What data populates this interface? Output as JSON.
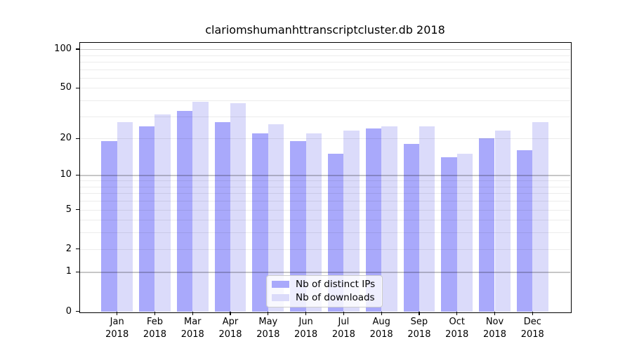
{
  "chart_data": {
    "type": "bar",
    "title": "clariomshumanhttranscriptcluster.db 2018",
    "categories": [
      "Jan",
      "Feb",
      "Mar",
      "Apr",
      "May",
      "Jun",
      "Jul",
      "Aug",
      "Sep",
      "Oct",
      "Nov",
      "Dec"
    ],
    "year_label": "2018",
    "series": [
      {
        "name": "Nb of distinct IPs",
        "color": "#a9a9fb",
        "values": [
          19,
          25,
          33,
          27,
          22,
          19,
          15,
          24,
          18,
          14,
          20,
          16
        ]
      },
      {
        "name": "Nb of downloads",
        "color": "#dbdbfa",
        "values": [
          27,
          31,
          39,
          38,
          26,
          22,
          23,
          25,
          25,
          15,
          23,
          27
        ]
      }
    ],
    "xlabel": "",
    "ylabel": "",
    "y_scale": "log1p",
    "ylim": [
      0,
      110
    ],
    "y_ticks": [
      100,
      50,
      20,
      10,
      5,
      2,
      1,
      0
    ],
    "y_gridlines_major": [
      1,
      10,
      100
    ],
    "y_gridlines_minor": [
      2,
      3,
      4,
      5,
      6,
      7,
      8,
      9,
      20,
      30,
      40,
      50,
      60,
      70,
      80,
      90
    ],
    "grid": true,
    "legend_position": "lower-center"
  }
}
